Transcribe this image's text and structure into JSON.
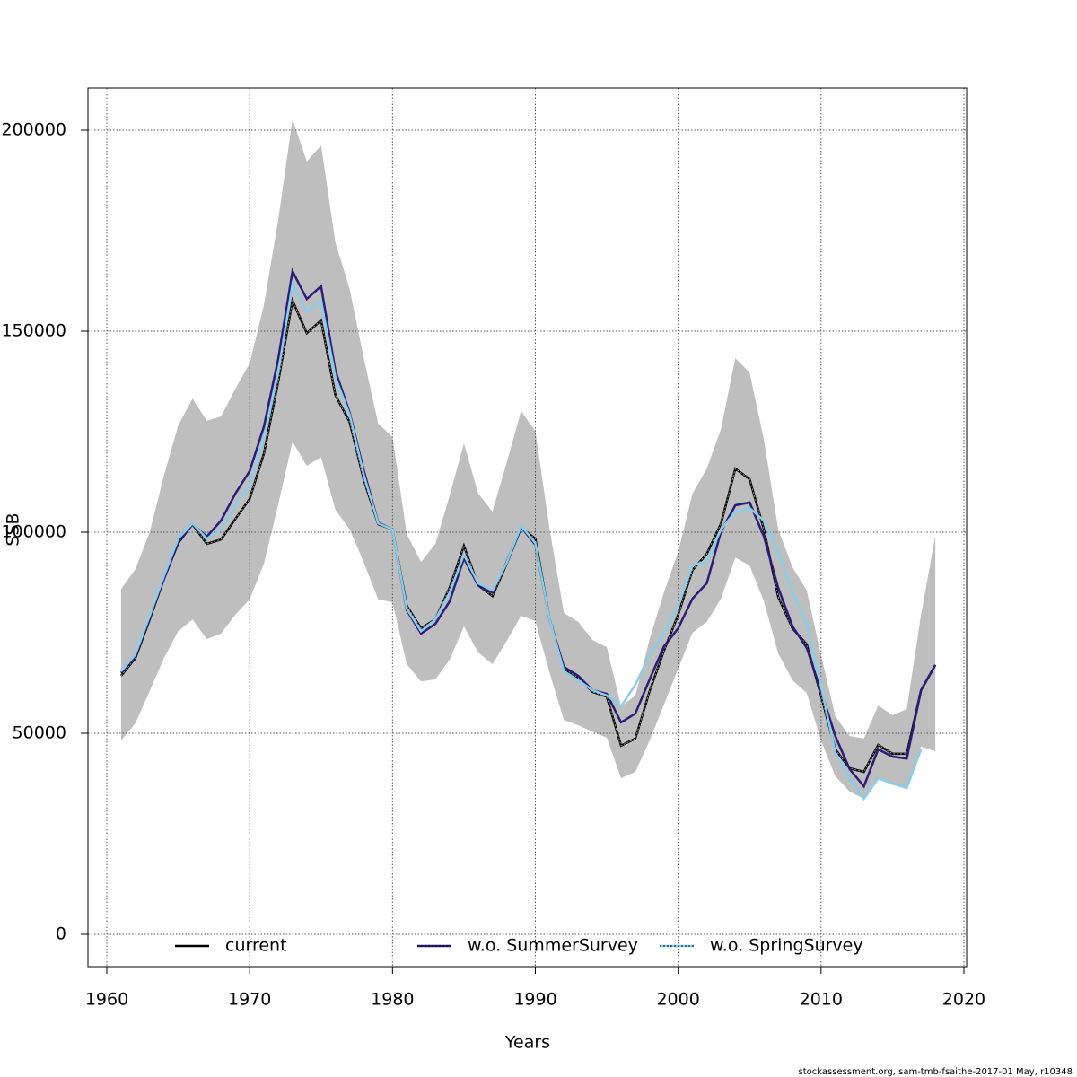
{
  "chart_data": {
    "type": "line",
    "x_label": "Years",
    "y_label": "SSB",
    "footnote": "stockassessment.org, sam-tmb-fsaithe-2017-01 May, r10348",
    "x": [
      1961,
      1962,
      1963,
      1964,
      1965,
      1966,
      1967,
      1968,
      1969,
      1970,
      1971,
      1972,
      1973,
      1974,
      1975,
      1976,
      1977,
      1978,
      1979,
      1980,
      1981,
      1982,
      1983,
      1984,
      1985,
      1986,
      1987,
      1988,
      1989,
      1990,
      1991,
      1992,
      1993,
      1994,
      1995,
      1996,
      1997,
      1998,
      1999,
      2000,
      2001,
      2002,
      2003,
      2004,
      2005,
      2006,
      2007,
      2008,
      2009,
      2010,
      2011,
      2012,
      2013,
      2014,
      2015,
      2016,
      2017,
      2018
    ],
    "ci_upper": [
      85900,
      90800,
      100000,
      114100,
      126600,
      133200,
      127700,
      128800,
      135700,
      142000,
      156500,
      177700,
      202700,
      192200,
      196200,
      172100,
      160500,
      143100,
      127000,
      123700,
      99500,
      92600,
      97100,
      109100,
      122100,
      109600,
      105100,
      117400,
      130100,
      125200,
      100700,
      79900,
      77700,
      73200,
      71400,
      56700,
      59400,
      73400,
      85000,
      95100,
      109600,
      115800,
      125700,
      143300,
      139700,
      123000,
      100700,
      91300,
      85500,
      69400,
      54200,
      49300,
      48700,
      56900,
      54500,
      56000,
      79500,
      99100
    ],
    "ci_lower": [
      48200,
      52500,
      60500,
      68700,
      75400,
      78300,
      73400,
      74800,
      79500,
      83300,
      92200,
      106900,
      122500,
      116500,
      118700,
      105600,
      100700,
      92400,
      83300,
      82600,
      67200,
      62900,
      63400,
      68300,
      76600,
      70100,
      67200,
      73000,
      79200,
      77900,
      65000,
      53300,
      52000,
      50400,
      48900,
      38800,
      40400,
      48200,
      57100,
      66100,
      75000,
      77700,
      83500,
      93700,
      91700,
      82800,
      69900,
      63200,
      60000,
      48200,
      39300,
      35500,
      33700,
      38600,
      37100,
      36400,
      46700,
      45500
    ],
    "ci_color": "#bebebe",
    "series": [
      {
        "name": "current",
        "color": "#000000",
        "values": [
          64300,
          68700,
          78300,
          88400,
          97300,
          102000,
          97100,
          98200,
          103300,
          108300,
          119600,
          137500,
          157600,
          149500,
          152700,
          134100,
          127400,
          112900,
          102000,
          100700,
          81700,
          76100,
          78300,
          86200,
          96600,
          86800,
          84100,
          92200,
          101100,
          98400,
          78300,
          66100,
          63800,
          60300,
          59100,
          46900,
          48700,
          60500,
          70500,
          79500,
          90600,
          94600,
          102200,
          115800,
          113200,
          100700,
          83900,
          76100,
          72100,
          59400,
          46000,
          41300,
          40400,
          47100,
          44900,
          44900,
          60700,
          67000
        ]
      },
      {
        "name": "w.o. SummerSurvey",
        "color": "#2d1b7a",
        "values": [
          65000,
          69200,
          78800,
          88400,
          97500,
          102000,
          98900,
          102900,
          109600,
          115200,
          126300,
          143100,
          164900,
          158000,
          161200,
          140200,
          129700,
          115200,
          102400,
          100700,
          80600,
          74800,
          77200,
          82800,
          93500,
          86800,
          85000,
          92600,
          101300,
          96900,
          78300,
          66500,
          64300,
          60700,
          59800,
          52700,
          54900,
          63400,
          71600,
          76100,
          83500,
          87300,
          100200,
          106700,
          107400,
          98900,
          86200,
          76600,
          71200,
          60500,
          49300,
          41100,
          36800,
          46000,
          44200,
          43700,
          60700,
          67000
        ]
      },
      {
        "name": "w.o. SpringSurvey",
        "color": "#87ceeb",
        "values": [
          65400,
          69600,
          79200,
          89100,
          98400,
          102200,
          98400,
          100700,
          106700,
          111800,
          123400,
          139700,
          161800,
          154900,
          157600,
          138600,
          129200,
          114100,
          102200,
          100700,
          81000,
          75400,
          78300,
          85000,
          94400,
          87300,
          85500,
          92400,
          101600,
          97300,
          78300,
          65400,
          63200,
          60700,
          59400,
          56700,
          62100,
          69400,
          75000,
          81700,
          91700,
          92900,
          100700,
          105100,
          106000,
          102900,
          95100,
          85000,
          77200,
          61600,
          45300,
          38600,
          33700,
          38800,
          37500,
          36400,
          46000,
          null
        ]
      }
    ],
    "xlim": [
      1958.68,
      2020.19
    ],
    "ylim": [
      -8036,
      210491
    ],
    "xticks": [
      1960,
      1970,
      1980,
      1990,
      2000,
      2010,
      2020
    ],
    "yticks": [
      0,
      50000,
      100000,
      150000,
      200000
    ],
    "grid": true,
    "legend": "bottom"
  }
}
